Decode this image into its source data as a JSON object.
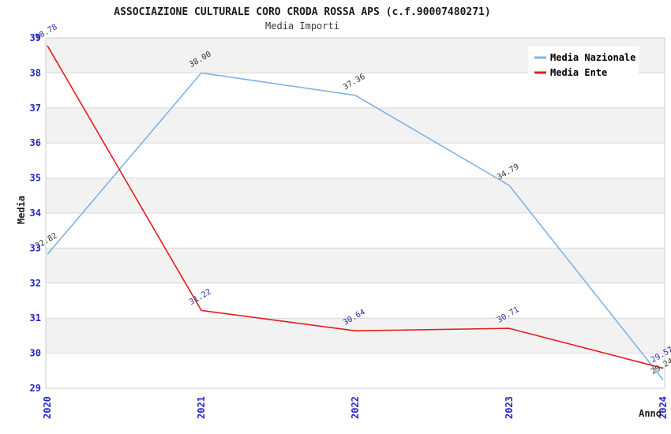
{
  "title": "ASSOCIAZIONE CULTURALE CORO CRODA ROSSA APS (c.f.90007480271)",
  "subtitle": "Media Importi",
  "chart_data": {
    "type": "line",
    "x": [
      "2020",
      "2021",
      "2022",
      "2023",
      "2024"
    ],
    "series": [
      {
        "name": "Media Nazionale",
        "values": [
          32.82,
          38.0,
          37.36,
          34.79,
          29.24
        ],
        "color": "#7fb2e5",
        "label_color": "#333333"
      },
      {
        "name": "Media Ente",
        "values": [
          38.78,
          31.22,
          30.64,
          30.71,
          29.57
        ],
        "color": "#e51c1c",
        "label_color": "#2a2a9e"
      }
    ],
    "xlabel": "Anno",
    "ylabel": "Media",
    "ylim": [
      29,
      39
    ],
    "yticks": [
      29,
      30,
      31,
      32,
      33,
      34,
      35,
      36,
      37,
      38,
      39
    ],
    "grid": true,
    "legend_position": "top-right",
    "colors": {
      "tick_label": "#2424cc",
      "band_main": "#ffffff",
      "band_alt": "#f2f2f2",
      "gridline": "#d9d9d9",
      "plot_border": "#cccccc",
      "legend_bg": "#ffffff",
      "title": "#1a1a1a"
    }
  }
}
